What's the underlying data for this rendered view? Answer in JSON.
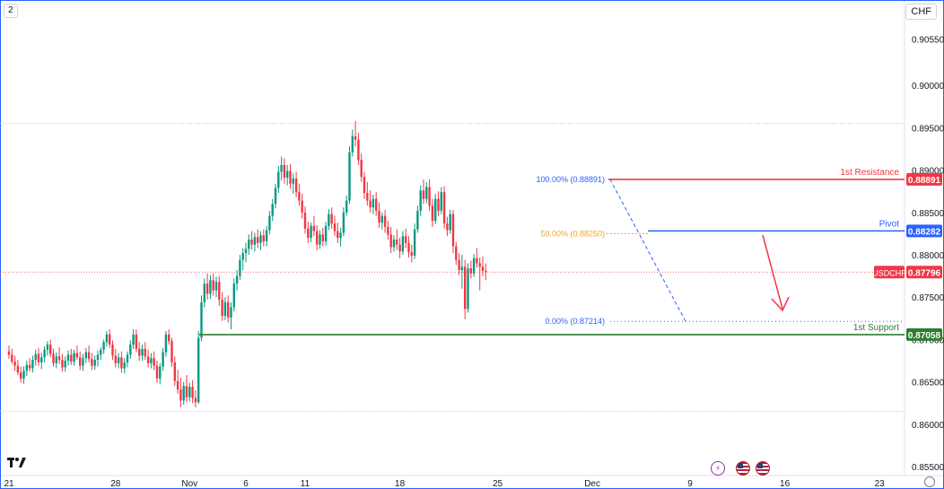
{
  "header": {
    "interval_badge": "2",
    "currency": "CHF"
  },
  "colors": {
    "up": "#089981",
    "down": "#f23645",
    "resistance": "#f23645",
    "pivot": "#2962ff",
    "support": "#2e7d32",
    "price": "#f23645",
    "fib": "#2962ff",
    "fib_mid": "#f5a623",
    "arrow": "#f23645"
  },
  "icons": {
    "logo": "tradingview-logo-icon",
    "events": [
      "flash-event-icon",
      "us-flag-event-icon",
      "us-flag-event-icon"
    ],
    "settings": "gear-icon"
  },
  "chart_data": {
    "type": "candlestick",
    "symbol": "USDCHF",
    "ylim": [
      0.855,
      0.9075
    ],
    "y_ticks": [
      "0.90550",
      "0.90000",
      "0.89500",
      "0.89000",
      "0.88500",
      "0.88000",
      "0.87500",
      "0.87000",
      "0.86500",
      "0.86000",
      "0.85500"
    ],
    "y_tick_values": [
      0.9055,
      0.9,
      0.895,
      0.89,
      0.885,
      0.88,
      0.875,
      0.87,
      0.865,
      0.86,
      0.855
    ],
    "x_ticks": [
      "21",
      "28",
      "Nov",
      "6",
      "11",
      "18",
      "25",
      "Dec",
      "9",
      "16",
      "23"
    ],
    "x_tick_bars": [
      0,
      36,
      61,
      80,
      100,
      132,
      165,
      197,
      230,
      262,
      294
    ],
    "levels": [
      {
        "label": "1st Resistance",
        "value": 0.88891,
        "value_text": "0.88891",
        "role": "resistance"
      },
      {
        "label": "Pivot",
        "value": 0.88282,
        "value_text": "0.88282",
        "role": "pivot"
      },
      {
        "label": "1st Support",
        "value": 0.87058,
        "value_text": "0.87058",
        "role": "support"
      }
    ],
    "current_price": {
      "label": "USDCHF",
      "value": 0.87796,
      "value_text": "0.87796"
    },
    "fib": [
      {
        "label": "100.00% (0.88891)",
        "value": 0.88891
      },
      {
        "label": "0.00% (0.87214)",
        "value": 0.87214
      }
    ],
    "fib_mid_label": "50.00% (0.88250)",
    "fib_mid_value": 0.8825,
    "reference_lines": [
      0.8955,
      0.8615
    ],
    "candles": [
      [
        0.8686,
        0.8693,
        0.8677,
        0.8682
      ],
      [
        0.8682,
        0.8689,
        0.8671,
        0.8674
      ],
      [
        0.8674,
        0.8681,
        0.8663,
        0.8669
      ],
      [
        0.8669,
        0.8676,
        0.8658,
        0.8661
      ],
      [
        0.8661,
        0.8668,
        0.8649,
        0.8654
      ],
      [
        0.8654,
        0.8668,
        0.8648,
        0.8663
      ],
      [
        0.8663,
        0.8675,
        0.8657,
        0.867
      ],
      [
        0.867,
        0.8678,
        0.8662,
        0.8666
      ],
      [
        0.8666,
        0.8681,
        0.8661,
        0.8676
      ],
      [
        0.8676,
        0.8688,
        0.8669,
        0.8683
      ],
      [
        0.8683,
        0.869,
        0.8669,
        0.8673
      ],
      [
        0.8673,
        0.8684,
        0.8665,
        0.8679
      ],
      [
        0.8679,
        0.8692,
        0.8673,
        0.8688
      ],
      [
        0.8688,
        0.8698,
        0.8681,
        0.8694
      ],
      [
        0.8694,
        0.87,
        0.8679,
        0.8683
      ],
      [
        0.8683,
        0.8689,
        0.8668,
        0.8672
      ],
      [
        0.8672,
        0.8685,
        0.8666,
        0.868
      ],
      [
        0.868,
        0.8691,
        0.8671,
        0.8676
      ],
      [
        0.8676,
        0.8683,
        0.8662,
        0.8667
      ],
      [
        0.8667,
        0.868,
        0.8662,
        0.8675
      ],
      [
        0.8675,
        0.8687,
        0.8669,
        0.8682
      ],
      [
        0.8682,
        0.8689,
        0.867,
        0.8674
      ],
      [
        0.8674,
        0.8688,
        0.8669,
        0.8684
      ],
      [
        0.8684,
        0.8693,
        0.8676,
        0.8679
      ],
      [
        0.8679,
        0.8686,
        0.8664,
        0.8669
      ],
      [
        0.8669,
        0.8683,
        0.8663,
        0.8678
      ],
      [
        0.8678,
        0.869,
        0.8672,
        0.8685
      ],
      [
        0.8685,
        0.8693,
        0.8673,
        0.8677
      ],
      [
        0.8677,
        0.8684,
        0.8664,
        0.8669
      ],
      [
        0.8669,
        0.8681,
        0.8664,
        0.8676
      ],
      [
        0.8676,
        0.8687,
        0.8668,
        0.8682
      ],
      [
        0.8682,
        0.8691,
        0.8676,
        0.8688
      ],
      [
        0.8688,
        0.87,
        0.8683,
        0.8697
      ],
      [
        0.8697,
        0.871,
        0.8692,
        0.8706
      ],
      [
        0.8706,
        0.8712,
        0.869,
        0.8694
      ],
      [
        0.8694,
        0.8699,
        0.8676,
        0.8681
      ],
      [
        0.8681,
        0.8689,
        0.8667,
        0.8672
      ],
      [
        0.8672,
        0.8684,
        0.8666,
        0.8679
      ],
      [
        0.8679,
        0.8686,
        0.8661,
        0.8666
      ],
      [
        0.8666,
        0.8678,
        0.866,
        0.8673
      ],
      [
        0.8673,
        0.8686,
        0.8667,
        0.8682
      ],
      [
        0.8682,
        0.8699,
        0.8677,
        0.8694
      ],
      [
        0.8694,
        0.8712,
        0.8689,
        0.8706
      ],
      [
        0.8706,
        0.8712,
        0.8685,
        0.8689
      ],
      [
        0.8689,
        0.8697,
        0.8675,
        0.8681
      ],
      [
        0.8681,
        0.8694,
        0.8675,
        0.8689
      ],
      [
        0.8689,
        0.8697,
        0.8676,
        0.868
      ],
      [
        0.868,
        0.8688,
        0.8667,
        0.8672
      ],
      [
        0.8672,
        0.8684,
        0.8666,
        0.8678
      ],
      [
        0.8678,
        0.8686,
        0.8664,
        0.8669
      ],
      [
        0.8669,
        0.8675,
        0.8649,
        0.8654
      ],
      [
        0.8654,
        0.8672,
        0.8647,
        0.8668
      ],
      [
        0.8668,
        0.869,
        0.8663,
        0.8685
      ],
      [
        0.8685,
        0.871,
        0.868,
        0.8706
      ],
      [
        0.8706,
        0.8712,
        0.8694,
        0.8698
      ],
      [
        0.8698,
        0.8702,
        0.8668,
        0.8673
      ],
      [
        0.8673,
        0.868,
        0.8645,
        0.8651
      ],
      [
        0.8651,
        0.8664,
        0.8636,
        0.8641
      ],
      [
        0.8641,
        0.8655,
        0.862,
        0.8628
      ],
      [
        0.8628,
        0.865,
        0.8623,
        0.8645
      ],
      [
        0.8645,
        0.8658,
        0.8626,
        0.8632
      ],
      [
        0.8632,
        0.8649,
        0.8627,
        0.8644
      ],
      [
        0.8644,
        0.8652,
        0.8625,
        0.8631
      ],
      [
        0.8631,
        0.864,
        0.862,
        0.8626
      ],
      [
        0.8626,
        0.871,
        0.8624,
        0.8702
      ],
      [
        0.8702,
        0.8752,
        0.8698,
        0.8744
      ],
      [
        0.8744,
        0.8772,
        0.8738,
        0.8766
      ],
      [
        0.8766,
        0.8778,
        0.8747,
        0.8754
      ],
      [
        0.8754,
        0.8776,
        0.8748,
        0.877
      ],
      [
        0.877,
        0.8778,
        0.8752,
        0.8758
      ],
      [
        0.8758,
        0.8774,
        0.875,
        0.8768
      ],
      [
        0.8768,
        0.8775,
        0.874,
        0.8747
      ],
      [
        0.8747,
        0.8756,
        0.8722,
        0.8728
      ],
      [
        0.8728,
        0.875,
        0.8723,
        0.8744
      ],
      [
        0.8744,
        0.8752,
        0.872,
        0.8726
      ],
      [
        0.8726,
        0.8744,
        0.8712,
        0.8738
      ],
      [
        0.8738,
        0.8772,
        0.8733,
        0.8766
      ],
      [
        0.8766,
        0.8782,
        0.8758,
        0.8775
      ],
      [
        0.8775,
        0.88,
        0.877,
        0.8794
      ],
      [
        0.8794,
        0.8808,
        0.8782,
        0.8802
      ],
      [
        0.8802,
        0.8814,
        0.8791,
        0.8807
      ],
      [
        0.8807,
        0.8824,
        0.88,
        0.8818
      ],
      [
        0.8818,
        0.8828,
        0.8806,
        0.8812
      ],
      [
        0.8812,
        0.8826,
        0.8804,
        0.8821
      ],
      [
        0.8821,
        0.883,
        0.8808,
        0.8814
      ],
      [
        0.8814,
        0.8828,
        0.8806,
        0.8823
      ],
      [
        0.8823,
        0.883,
        0.881,
        0.8816
      ],
      [
        0.8816,
        0.8834,
        0.881,
        0.8829
      ],
      [
        0.8829,
        0.8852,
        0.8824,
        0.8846
      ],
      [
        0.8846,
        0.8866,
        0.884,
        0.886
      ],
      [
        0.886,
        0.8884,
        0.8855,
        0.8879
      ],
      [
        0.8879,
        0.8905,
        0.8873,
        0.8898
      ],
      [
        0.8898,
        0.8916,
        0.8888,
        0.8906
      ],
      [
        0.8906,
        0.8914,
        0.8884,
        0.8891
      ],
      [
        0.8891,
        0.8906,
        0.8882,
        0.8899
      ],
      [
        0.8899,
        0.8907,
        0.8878,
        0.8884
      ],
      [
        0.8884,
        0.8896,
        0.8872,
        0.889
      ],
      [
        0.889,
        0.8898,
        0.8868,
        0.8874
      ],
      [
        0.8874,
        0.8884,
        0.8858,
        0.8864
      ],
      [
        0.8864,
        0.8872,
        0.8843,
        0.885
      ],
      [
        0.885,
        0.8857,
        0.8825,
        0.8831
      ],
      [
        0.8831,
        0.8839,
        0.8814,
        0.882
      ],
      [
        0.882,
        0.8838,
        0.8815,
        0.8834
      ],
      [
        0.8834,
        0.8846,
        0.8822,
        0.8828
      ],
      [
        0.8828,
        0.8835,
        0.8805,
        0.8812
      ],
      [
        0.8812,
        0.8829,
        0.8807,
        0.8824
      ],
      [
        0.8824,
        0.8832,
        0.881,
        0.8816
      ],
      [
        0.8816,
        0.8839,
        0.8811,
        0.8834
      ],
      [
        0.8834,
        0.8854,
        0.8829,
        0.8848
      ],
      [
        0.8848,
        0.8856,
        0.8831,
        0.8837
      ],
      [
        0.8837,
        0.8846,
        0.8822,
        0.8828
      ],
      [
        0.8828,
        0.8838,
        0.8814,
        0.882
      ],
      [
        0.882,
        0.8832,
        0.881,
        0.8826
      ],
      [
        0.8826,
        0.8856,
        0.8822,
        0.885
      ],
      [
        0.885,
        0.887,
        0.8846,
        0.8864
      ],
      [
        0.8864,
        0.8928,
        0.886,
        0.8921
      ],
      [
        0.8921,
        0.8948,
        0.8916,
        0.894
      ],
      [
        0.894,
        0.8958,
        0.8928,
        0.8936
      ],
      [
        0.8936,
        0.8944,
        0.8906,
        0.8912
      ],
      [
        0.8912,
        0.892,
        0.8886,
        0.8892
      ],
      [
        0.8892,
        0.8898,
        0.8866,
        0.8873
      ],
      [
        0.8873,
        0.8886,
        0.8858,
        0.8864
      ],
      [
        0.8864,
        0.8876,
        0.885,
        0.8856
      ],
      [
        0.8856,
        0.8871,
        0.8848,
        0.8866
      ],
      [
        0.8866,
        0.8874,
        0.8846,
        0.8852
      ],
      [
        0.8852,
        0.8862,
        0.8832,
        0.8838
      ],
      [
        0.8838,
        0.885,
        0.883,
        0.8846
      ],
      [
        0.8846,
        0.8853,
        0.8826,
        0.8833
      ],
      [
        0.8833,
        0.884,
        0.8818,
        0.8824
      ],
      [
        0.8824,
        0.8833,
        0.8802,
        0.8809
      ],
      [
        0.8809,
        0.8823,
        0.8804,
        0.8818
      ],
      [
        0.8818,
        0.883,
        0.8806,
        0.8812
      ],
      [
        0.8812,
        0.882,
        0.8796,
        0.8804
      ],
      [
        0.8804,
        0.8828,
        0.88,
        0.8822
      ],
      [
        0.8822,
        0.8831,
        0.8808,
        0.8814
      ],
      [
        0.8814,
        0.8822,
        0.8797,
        0.8803
      ],
      [
        0.8803,
        0.8812,
        0.8791,
        0.8799
      ],
      [
        0.8799,
        0.8837,
        0.8795,
        0.883
      ],
      [
        0.883,
        0.8858,
        0.8826,
        0.8852
      ],
      [
        0.8852,
        0.8882,
        0.8846,
        0.8876
      ],
      [
        0.8876,
        0.8889,
        0.886,
        0.8866
      ],
      [
        0.8866,
        0.8886,
        0.8861,
        0.888
      ],
      [
        0.888,
        0.8889,
        0.8852,
        0.8858
      ],
      [
        0.8858,
        0.8866,
        0.8833,
        0.884
      ],
      [
        0.884,
        0.8872,
        0.8836,
        0.8866
      ],
      [
        0.8866,
        0.8875,
        0.8846,
        0.8852
      ],
      [
        0.8852,
        0.888,
        0.8848,
        0.8874
      ],
      [
        0.8874,
        0.8881,
        0.8831,
        0.8837
      ],
      [
        0.8837,
        0.8845,
        0.8822,
        0.8829
      ],
      [
        0.8829,
        0.8853,
        0.8825,
        0.8848
      ],
      [
        0.8848,
        0.8853,
        0.8802,
        0.881
      ],
      [
        0.881,
        0.8815,
        0.8788,
        0.8794
      ],
      [
        0.8794,
        0.8802,
        0.8776,
        0.8782
      ],
      [
        0.8782,
        0.88,
        0.876,
        0.8786
      ],
      [
        0.8786,
        0.8794,
        0.8724,
        0.8736
      ],
      [
        0.8736,
        0.879,
        0.8732,
        0.8784
      ],
      [
        0.8784,
        0.8793,
        0.8772,
        0.8778
      ],
      [
        0.8778,
        0.8801,
        0.8774,
        0.8796
      ],
      [
        0.8796,
        0.8808,
        0.8785,
        0.879
      ],
      [
        0.879,
        0.8797,
        0.8758,
        0.8786
      ],
      [
        0.8786,
        0.8798,
        0.8775,
        0.8781
      ],
      [
        0.8781,
        0.879,
        0.877,
        0.878
      ]
    ]
  }
}
